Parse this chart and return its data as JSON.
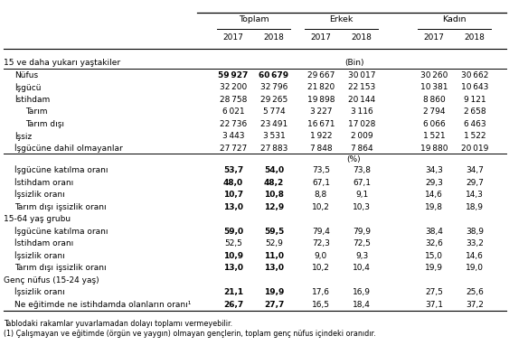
{
  "col_headers": [
    "Toplam",
    "Erkek",
    "Kadın"
  ],
  "sub_headers": [
    "2017",
    "2018",
    "2017",
    "2018",
    "2017",
    "2018"
  ],
  "bin_label": "(Bin)",
  "pct_label": "(%)",
  "rows": [
    {
      "label": "15 ve daha yukarı yaştakiler",
      "indent": 0,
      "bold_label": false,
      "bold_vals": [
        false,
        false,
        false,
        false,
        false,
        false
      ],
      "values": [
        "",
        "",
        "",
        "",
        "",
        ""
      ],
      "bin_after": true
    },
    {
      "label": "Nüfus",
      "indent": 1,
      "bold_label": false,
      "bold_vals": [
        true,
        true,
        false,
        false,
        false,
        false
      ],
      "values": [
        "59 927",
        "60 679",
        "29 667",
        "30 017",
        "30 260",
        "30 662"
      ],
      "sep_before": true
    },
    {
      "label": "İşgücü",
      "indent": 1,
      "bold_label": false,
      "bold_vals": [
        false,
        false,
        false,
        false,
        false,
        false
      ],
      "values": [
        "32 200",
        "32 796",
        "21 820",
        "22 153",
        "10 381",
        "10 643"
      ]
    },
    {
      "label": "İstihdam",
      "indent": 1,
      "bold_label": false,
      "bold_vals": [
        false,
        false,
        false,
        false,
        false,
        false
      ],
      "values": [
        "28 758",
        "29 265",
        "19 898",
        "20 144",
        "8 860",
        "9 121"
      ]
    },
    {
      "label": "Tarım",
      "indent": 2,
      "bold_label": false,
      "bold_vals": [
        false,
        false,
        false,
        false,
        false,
        false
      ],
      "values": [
        "6 021",
        "5 774",
        "3 227",
        "3 116",
        "2 794",
        "2 658"
      ]
    },
    {
      "label": "Tarım dışı",
      "indent": 2,
      "bold_label": false,
      "bold_vals": [
        false,
        false,
        false,
        false,
        false,
        false
      ],
      "values": [
        "22 736",
        "23 491",
        "16 671",
        "17 028",
        "6 066",
        "6 463"
      ]
    },
    {
      "label": "İşsiz",
      "indent": 1,
      "bold_label": false,
      "bold_vals": [
        false,
        false,
        false,
        false,
        false,
        false
      ],
      "values": [
        "3 443",
        "3 531",
        "1 922",
        "2 009",
        "1 521",
        "1 522"
      ]
    },
    {
      "label": "İşgücüne dahil olmayanlar",
      "indent": 1,
      "bold_label": false,
      "bold_vals": [
        false,
        false,
        false,
        false,
        false,
        false
      ],
      "values": [
        "27 727",
        "27 883",
        "7 848",
        "7 864",
        "19 880",
        "20 019"
      ]
    },
    {
      "label": "",
      "indent": 0,
      "bold_label": false,
      "bold_vals": [
        false,
        false,
        false,
        false,
        false,
        false
      ],
      "values": [
        "",
        "",
        "",
        "",
        "",
        ""
      ],
      "sep_before": true,
      "pct_row": true
    },
    {
      "label": "İşgücüne katılma oranı",
      "indent": 1,
      "bold_label": false,
      "bold_vals": [
        true,
        true,
        false,
        false,
        false,
        false
      ],
      "values": [
        "53,7",
        "54,0",
        "73,5",
        "73,8",
        "34,3",
        "34,7"
      ]
    },
    {
      "label": "İstihdam oranı",
      "indent": 1,
      "bold_label": false,
      "bold_vals": [
        true,
        true,
        false,
        false,
        false,
        false
      ],
      "values": [
        "48,0",
        "48,2",
        "67,1",
        "67,1",
        "29,3",
        "29,7"
      ]
    },
    {
      "label": "İşsizlik oranı",
      "indent": 1,
      "bold_label": false,
      "bold_vals": [
        true,
        true,
        false,
        false,
        false,
        false
      ],
      "values": [
        "10,7",
        "10,8",
        "8,8",
        "9,1",
        "14,6",
        "14,3"
      ]
    },
    {
      "label": "Tarım dışı işsizlik oranı",
      "indent": 1,
      "bold_label": false,
      "bold_vals": [
        true,
        true,
        false,
        false,
        false,
        false
      ],
      "values": [
        "13,0",
        "12,9",
        "10,2",
        "10,3",
        "19,8",
        "18,9"
      ]
    },
    {
      "label": "15-64 yaş grubu",
      "indent": 0,
      "bold_label": false,
      "bold_vals": [
        false,
        false,
        false,
        false,
        false,
        false
      ],
      "values": [
        "",
        "",
        "",
        "",
        "",
        ""
      ]
    },
    {
      "label": "İşgücüne katılma oranı",
      "indent": 1,
      "bold_label": false,
      "bold_vals": [
        true,
        true,
        false,
        false,
        false,
        false
      ],
      "values": [
        "59,0",
        "59,5",
        "79,4",
        "79,9",
        "38,4",
        "38,9"
      ]
    },
    {
      "label": "İstihdam oranı",
      "indent": 1,
      "bold_label": false,
      "bold_vals": [
        false,
        false,
        false,
        false,
        false,
        false
      ],
      "values": [
        "52,5",
        "52,9",
        "72,3",
        "72,5",
        "32,6",
        "33,2"
      ]
    },
    {
      "label": "İşsizlik oranı",
      "indent": 1,
      "bold_label": false,
      "bold_vals": [
        true,
        true,
        false,
        false,
        false,
        false
      ],
      "values": [
        "10,9",
        "11,0",
        "9,0",
        "9,3",
        "15,0",
        "14,6"
      ]
    },
    {
      "label": "Tarım dışı işsizlik oranı",
      "indent": 1,
      "bold_label": false,
      "bold_vals": [
        true,
        true,
        false,
        false,
        false,
        false
      ],
      "values": [
        "13,0",
        "13,0",
        "10,2",
        "10,4",
        "19,9",
        "19,0"
      ]
    },
    {
      "label": "Genç nüfus (15-24 yaş)",
      "indent": 0,
      "bold_label": false,
      "bold_vals": [
        false,
        false,
        false,
        false,
        false,
        false
      ],
      "values": [
        "",
        "",
        "",
        "",
        "",
        ""
      ]
    },
    {
      "label": "İşsizlik oranı",
      "indent": 1,
      "bold_label": false,
      "bold_vals": [
        true,
        true,
        false,
        false,
        false,
        false
      ],
      "values": [
        "21,1",
        "19,9",
        "17,6",
        "16,9",
        "27,5",
        "25,6"
      ]
    },
    {
      "label": "Ne eğitimde ne istihdamda olanların oranı¹",
      "indent": 1,
      "bold_label": false,
      "bold_vals": [
        true,
        true,
        false,
        false,
        false,
        false
      ],
      "values": [
        "26,7",
        "27,7",
        "16,5",
        "18,4",
        "37,1",
        "37,2"
      ]
    }
  ],
  "footnote1": "Tablodaki rakamlar yuvarlamadan dolayı toplamı vermeyebilir.",
  "footnote2": "(1) Çalışmayan ve eğitimde (örgün ve yaygın) olmayan gençlerin, toplam genç nüfus içindeki oranıdır."
}
